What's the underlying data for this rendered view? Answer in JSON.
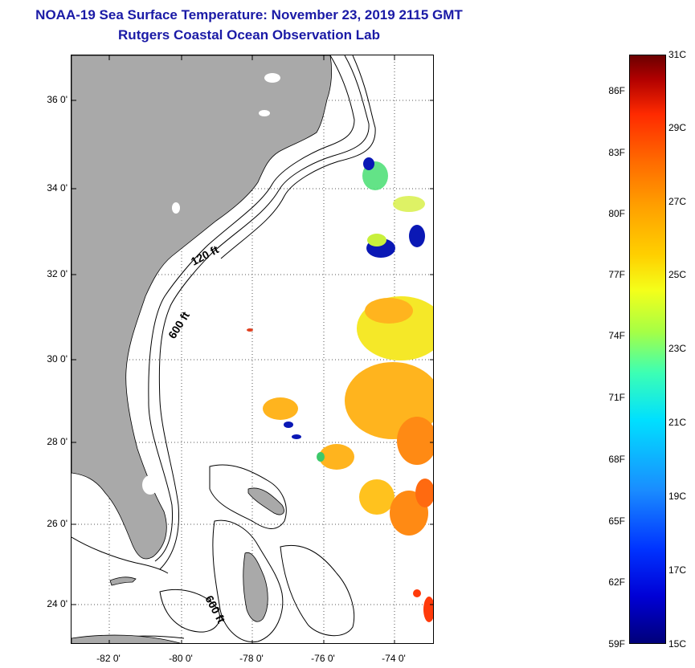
{
  "header": {
    "title": "NOAA-19 Sea Surface Temperature:  November 23, 2019 2115 GMT",
    "subtitle": "Rutgers Coastal Ocean Observation Lab"
  },
  "map": {
    "lat_labels": [
      "36 0'",
      "34 0'",
      "32 0'",
      "30 0'",
      "28 0'",
      "26 0'",
      "24 0'"
    ],
    "lon_labels": [
      "-82 0'",
      "-80 0'",
      "-78 0'",
      "-76 0'",
      "-74 0'"
    ],
    "contour_labels": [
      "120 ft",
      "600 ft",
      "600 ft"
    ],
    "land_color": "#a9a9a9",
    "grid": "dotted"
  },
  "colorbar": {
    "fahrenheit": [
      "86F",
      "83F",
      "80F",
      "77F",
      "74F",
      "71F",
      "68F",
      "65F",
      "62F",
      "59F"
    ],
    "celsius": [
      "31C",
      "29C",
      "27C",
      "25C",
      "23C",
      "21C",
      "19C",
      "17C",
      "15C"
    ]
  }
}
